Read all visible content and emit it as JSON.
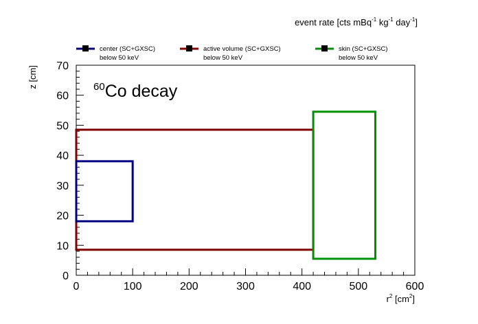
{
  "chart_data": {
    "type": "region",
    "title": "event rate [cts mBq⁻¹ kg⁻¹ day⁻¹]",
    "title_parts": {
      "prefix": "event rate [cts mBq",
      "sup1": "-1",
      "mid1": " kg",
      "sup2": "-1",
      "mid2": " day",
      "sup3": "-1",
      "suffix": "]"
    },
    "xlabel": "r² [cm²]",
    "xlabel_parts": {
      "base": "r",
      "sup1": "2",
      "mid": " [cm",
      "sup2": "2",
      "suffix": "]"
    },
    "ylabel": "z [cm]",
    "xlim": [
      0,
      600
    ],
    "ylim": [
      0,
      70
    ],
    "xticks": [
      0,
      100,
      200,
      300,
      400,
      500,
      600
    ],
    "yticks": [
      0,
      10,
      20,
      30,
      40,
      50,
      60,
      70
    ],
    "x_minor_step": 20,
    "y_minor_step": 2,
    "grid": false,
    "legend_placement": "top",
    "annotation": {
      "sup": "60",
      "text": "Co decay"
    },
    "series": [
      {
        "name": "center (SC+GXSC)",
        "sublabel": "below 50 keV",
        "color": "#000080",
        "rect": {
          "x0": 0,
          "x1": 100,
          "y0": 18,
          "y1": 38
        }
      },
      {
        "name": "active volume (SC+GXSC)",
        "sublabel": "below 50 keV",
        "color": "#800000",
        "rect": {
          "x0": 0,
          "x1": 420,
          "y0": 8.5,
          "y1": 48.5
        }
      },
      {
        "name": "skin (SC+GXSC)",
        "sublabel": "below 50 keV",
        "color": "#009000",
        "rect": {
          "x0": 420,
          "x1": 530,
          "y0": 5.5,
          "y1": 54.5
        }
      }
    ]
  }
}
